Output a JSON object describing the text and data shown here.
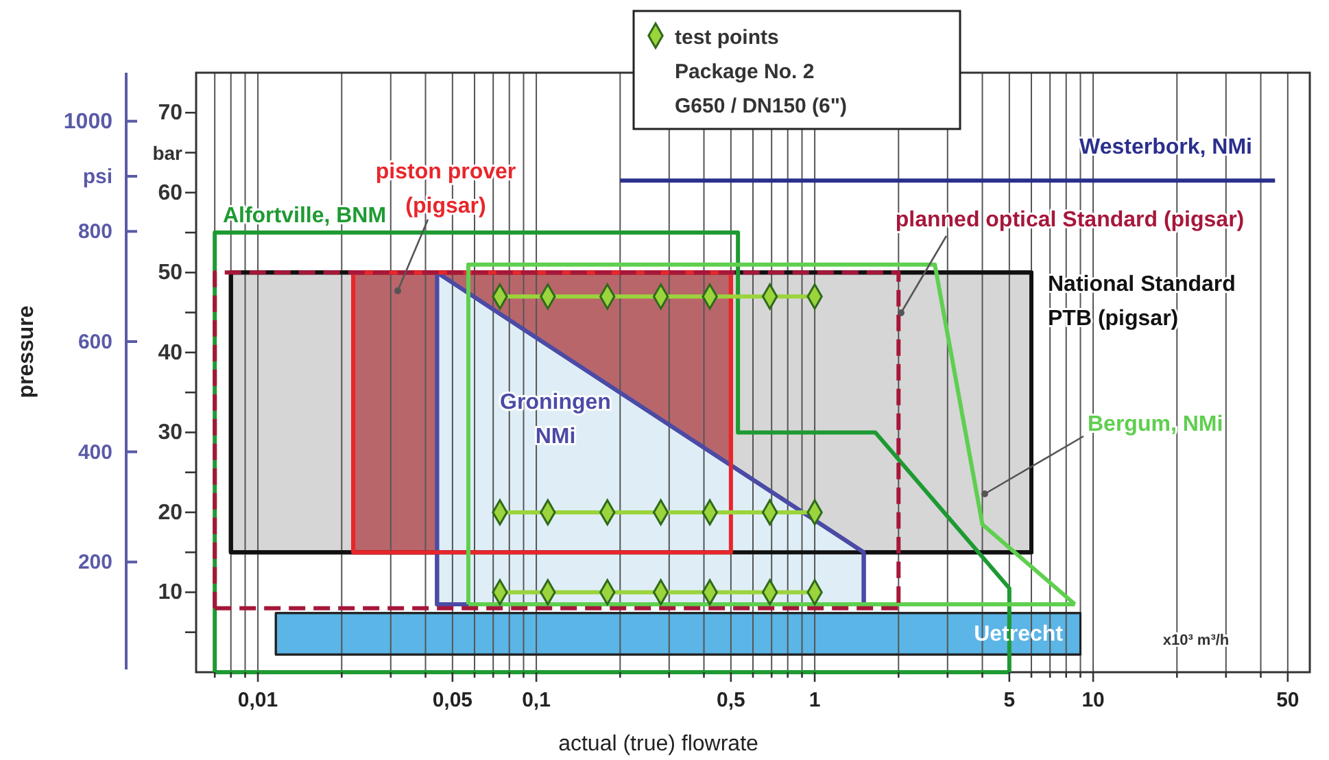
{
  "chart_data": {
    "type": "line",
    "xlabel": "actual (true) flowrate",
    "y2label": "pressure",
    "log": "x",
    "grid": "x",
    "legend": "top",
    "xlim": [
      0.006,
      60
    ],
    "ylim": [
      0,
      75
    ],
    "y2lim": [
      0,
      1088
    ],
    "xticks": [
      {
        "value": 0.007,
        "label": null
      },
      {
        "value": 0.008,
        "label": null
      },
      {
        "value": 0.009,
        "label": null
      },
      {
        "value": 0.01,
        "label": "0,01"
      },
      {
        "value": 0.02,
        "label": null
      },
      {
        "value": 0.03,
        "label": null
      },
      {
        "value": 0.04,
        "label": null
      },
      {
        "value": 0.05,
        "label": "0,05"
      },
      {
        "value": 0.06,
        "label": null
      },
      {
        "value": 0.07,
        "label": null
      },
      {
        "value": 0.08,
        "label": null
      },
      {
        "value": 0.09,
        "label": null
      },
      {
        "value": 0.1,
        "label": "0,1"
      },
      {
        "value": 0.2,
        "label": null
      },
      {
        "value": 0.3,
        "label": null
      },
      {
        "value": 0.4,
        "label": null
      },
      {
        "value": 0.5,
        "label": "0,5"
      },
      {
        "value": 0.6,
        "label": null
      },
      {
        "value": 0.7,
        "label": null
      },
      {
        "value": 0.8,
        "label": null
      },
      {
        "value": 0.9,
        "label": null
      },
      1,
      {
        "value": 2,
        "label": null
      },
      {
        "value": 3,
        "label": null
      },
      {
        "value": 4,
        "label": null
      },
      5,
      {
        "value": 6,
        "label": null
      },
      {
        "value": 7,
        "label": null
      },
      {
        "value": 8,
        "label": null
      },
      {
        "value": 9,
        "label": null
      },
      10,
      {
        "value": 20,
        "label": null
      },
      {
        "value": 30,
        "label": null
      },
      {
        "value": 40,
        "label": null
      },
      50
    ],
    "yticks": [
      {
        "value": 5,
        "label": null
      },
      10,
      {
        "value": 15,
        "label": null
      },
      20,
      {
        "value": 25,
        "label": null
      },
      30,
      {
        "value": 35,
        "label": null
      },
      40,
      {
        "value": 45,
        "label": null
      },
      50,
      {
        "value": 55,
        "label": null
      },
      60,
      {
        "value": 65,
        "label": "bar"
      },
      70
    ],
    "y2ticks": [
      200,
      400,
      600,
      800,
      {
        "value": 900,
        "label": "psi"
      },
      1000
    ],
    "annotations": [
      "x10³ m³/h",
      "Package No. 2",
      "G650 / DN150 (6\")"
    ],
    "series": [
      {
        "type": "area",
        "name": "National Standard PTB (pigsar)",
        "color": "#d6d6d6",
        "x": [
          0.008,
          0.008,
          6,
          6,
          0.008
        ],
        "values": [
          15,
          50,
          50,
          15,
          15
        ]
      },
      {
        "type": "area",
        "name": "Groningen NMi",
        "color": "#dfeef6",
        "x": [
          0.044,
          0.044,
          1.5,
          1.5,
          0.044
        ],
        "values": [
          8.5,
          50,
          15,
          8.5,
          8.5
        ]
      },
      {
        "type": "area",
        "name": "piston prover (pigsar)",
        "color": "#b9666a",
        "x": [
          0.022,
          0.022,
          0.5,
          0.5,
          0.022
        ],
        "values": [
          15,
          50,
          50,
          15,
          15
        ]
      },
      {
        "type": "area",
        "name": "Uetrecht",
        "color": "#5bb5e6",
        "x": [
          0.0116,
          0.0116,
          9,
          9,
          0.0116
        ],
        "values": [
          2.2,
          7.4,
          7.4,
          2.2,
          2.2
        ]
      },
      {
        "name": "Alfortville, BNM",
        "color": "#1e9a33",
        "x": [
          0.007,
          0.007,
          0.53,
          0.53,
          1.65,
          5,
          5
        ],
        "values": [
          0,
          55,
          55,
          30,
          30,
          10.5,
          0
        ]
      },
      {
        "color": "#1e9a33",
        "x": [
          0.007,
          5
        ],
        "values": [
          0,
          0
        ]
      },
      {
        "name": "Bergum, NMi",
        "color": "#5fcf4f",
        "x": [
          0.057,
          0.057,
          2.7,
          4,
          8.6
        ],
        "values": [
          8.5,
          51,
          51,
          18.5,
          8.5
        ]
      },
      {
        "color": "#5fcf4f",
        "x": [
          0.057,
          8.6
        ],
        "values": [
          8.5,
          8.5
        ]
      },
      {
        "name": "planned optical Standard (pigsar)",
        "color": "#a6173a",
        "line_style": "dashed",
        "x": [
          0.007,
          0.007,
          2,
          2
        ],
        "values": [
          8,
          50,
          50,
          8
        ]
      },
      {
        "color": "#a6173a",
        "line_style": "dashed",
        "x": [
          0.007,
          2
        ],
        "values": [
          8,
          8
        ]
      },
      {
        "name": "Westerbork, NMi",
        "color": "#2b2f8c",
        "x": [
          0.2,
          45
        ],
        "values": [
          61.5,
          61.5
        ]
      },
      {
        "name": "test points",
        "color": "#9bd43c",
        "marker": "diamond",
        "x": [
          0.074,
          0.11,
          0.18,
          0.28,
          0.42,
          0.69,
          1.0
        ],
        "values": [
          47,
          47,
          47,
          47,
          47,
          47,
          47
        ]
      },
      {
        "color": "#9bd43c",
        "marker": "diamond",
        "x": [
          0.074,
          0.11,
          0.18,
          0.28,
          0.42,
          0.69,
          1.0
        ],
        "values": [
          20,
          20,
          20,
          20,
          20,
          20,
          20
        ]
      },
      {
        "color": "#9bd43c",
        "marker": "diamond",
        "x": [
          0.074,
          0.11,
          0.18,
          0.28,
          0.42,
          0.69,
          1.0
        ],
        "values": [
          10,
          10,
          10,
          10,
          10,
          10,
          10
        ]
      }
    ]
  }
}
